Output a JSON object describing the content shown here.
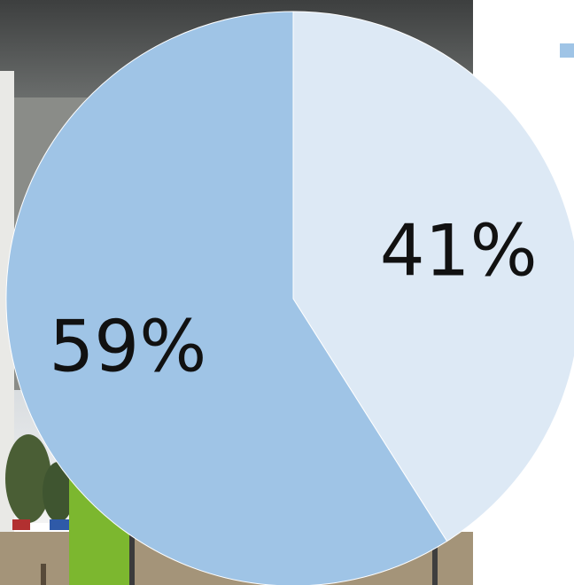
{
  "chart_data": {
    "type": "pie",
    "categories": [
      "",
      ""
    ],
    "values": [
      41,
      59
    ],
    "labels": [
      "41%",
      "59%"
    ],
    "colors": [
      "#dde9f5",
      "#9fc4e6"
    ],
    "title": "",
    "legend": "top-right"
  },
  "colors": {
    "page_background": "#ffffff",
    "legend_swatch": "#9fc4e6"
  }
}
